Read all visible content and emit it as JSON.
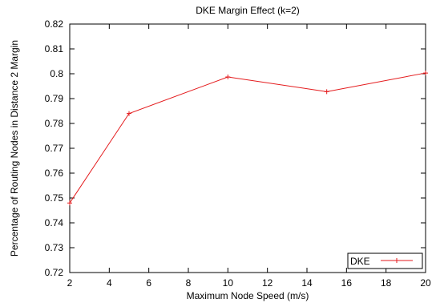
{
  "chart_data": {
    "type": "line",
    "title": "DKE Margin Effect (k=2)",
    "xlabel": "Maximum Node Speed (m/s)",
    "ylabel": "Percentage of Routing Nodes in Distance 2 Margin",
    "xlim": [
      2,
      20
    ],
    "ylim": [
      0.72,
      0.82
    ],
    "xticks": [
      "2",
      "4",
      "6",
      "8",
      "10",
      "12",
      "14",
      "16",
      "18",
      "20"
    ],
    "yticks": [
      "0.72",
      "0.73",
      "0.74",
      "0.75",
      "0.76",
      "0.77",
      "0.78",
      "0.79",
      "0.8",
      "0.81",
      "0.82"
    ],
    "grid": false,
    "legend_position": "bottom-right",
    "series": [
      {
        "name": "DKE",
        "color": "#e41a1c",
        "x": [
          2,
          5,
          10,
          15,
          20
        ],
        "y": [
          0.748,
          0.784,
          0.7987,
          0.7928,
          0.8003
        ]
      }
    ]
  }
}
